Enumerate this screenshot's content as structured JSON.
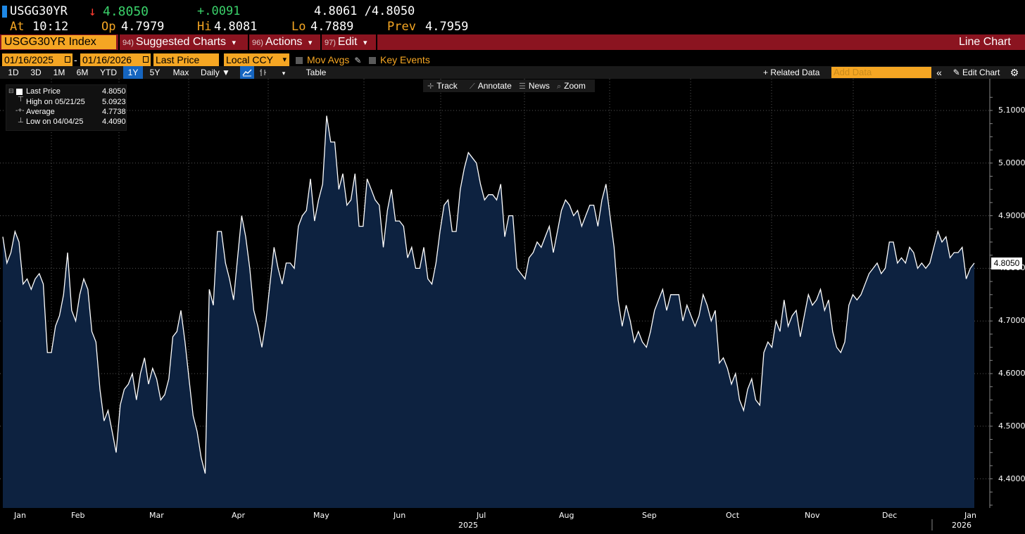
{
  "header": {
    "ticker": "USGG30YR",
    "direction_arrow": "↓",
    "last": "4.8050",
    "change": "+.0091",
    "bid_ask": "4.8061 /4.8050",
    "time_label": "At",
    "time": "10:12",
    "open_label": "Op",
    "open": "4.7979",
    "high_label": "Hi",
    "high": "4.8081",
    "low_label": "Lo",
    "low": "4.7889",
    "prev_label": "Prev",
    "prev": "4.7959"
  },
  "redbar": {
    "security": "USGG30YR Index",
    "suggested_num": "94)",
    "suggested": "Suggested Charts",
    "actions_num": "96)",
    "actions": "Actions",
    "edit_num": "97)",
    "edit": "Edit",
    "caret": "▾",
    "chart_type": "Line Chart"
  },
  "controls": {
    "start_date": "01/16/2025",
    "dash": "-",
    "end_date": "01/16/2026",
    "field": "Last Price",
    "currency": "Local CCY",
    "mov_avgs": "Mov Avgs",
    "key_events": "Key Events"
  },
  "ranges": [
    "1D",
    "3D",
    "1M",
    "6M",
    "YTD",
    "1Y",
    "5Y",
    "Max"
  ],
  "selected_range": "1Y",
  "period": "Daily ▼",
  "table_label": "Table",
  "related_data": "+ Related Data",
  "add_data_placeholder": "Add Data",
  "edit_chart": "Edit Chart",
  "chart_tools": [
    "Track",
    "Annotate",
    "News",
    "Zoom"
  ],
  "legend": {
    "last_label": "Last Price",
    "last_value": "4.8050",
    "high_label": "High on 05/21/25",
    "high_value": "5.0923",
    "avg_label": "Average",
    "avg_value": "4.7738",
    "low_label": "Low on 04/04/25",
    "low_value": "4.4090"
  },
  "chart_data": {
    "type": "area",
    "ylim": [
      4.35,
      5.15
    ],
    "grid": true,
    "yticks": [
      "5.1000",
      "5.0000",
      "4.9000",
      "4.8000",
      "4.7000",
      "4.6000",
      "4.5000",
      "4.4000"
    ],
    "last_value_tag": "4.8050",
    "line_color": "#ffffff",
    "fill_color": "#0d2240",
    "months": [
      "Jan",
      "Feb",
      "Mar",
      "Apr",
      "May",
      "Jun",
      "Jul",
      "Aug",
      "Sep",
      "Oct",
      "Nov",
      "Dec",
      "Jan"
    ],
    "year_labels": [
      "2025",
      "2026"
    ],
    "x_start": "2025-01-16",
    "x_end": "2026-01-16",
    "values": [
      4.86,
      4.81,
      4.83,
      4.87,
      4.85,
      4.77,
      4.78,
      4.76,
      4.78,
      4.79,
      4.77,
      4.64,
      4.64,
      4.69,
      4.71,
      4.75,
      4.83,
      4.72,
      4.7,
      4.75,
      4.78,
      4.76,
      4.68,
      4.66,
      4.57,
      4.51,
      4.53,
      4.49,
      4.45,
      4.54,
      4.57,
      4.58,
      4.6,
      4.55,
      4.6,
      4.63,
      4.58,
      4.61,
      4.59,
      4.55,
      4.56,
      4.59,
      4.67,
      4.68,
      4.72,
      4.66,
      4.59,
      4.52,
      4.49,
      4.44,
      4.41,
      4.76,
      4.73,
      4.87,
      4.87,
      4.81,
      4.78,
      4.74,
      4.82,
      4.9,
      4.86,
      4.8,
      4.72,
      4.69,
      4.65,
      4.7,
      4.77,
      4.84,
      4.8,
      4.77,
      4.81,
      4.81,
      4.8,
      4.88,
      4.9,
      4.91,
      4.97,
      4.89,
      4.93,
      4.96,
      5.09,
      5.04,
      5.04,
      4.95,
      4.98,
      4.92,
      4.93,
      4.98,
      4.88,
      4.88,
      4.97,
      4.95,
      4.93,
      4.92,
      4.84,
      4.91,
      4.95,
      4.89,
      4.89,
      4.88,
      4.82,
      4.84,
      4.8,
      4.8,
      4.84,
      4.78,
      4.77,
      4.81,
      4.87,
      4.92,
      4.93,
      4.87,
      4.87,
      4.95,
      4.99,
      5.02,
      5.01,
      5.0,
      4.96,
      4.93,
      4.94,
      4.94,
      4.93,
      4.96,
      4.86,
      4.9,
      4.9,
      4.8,
      4.79,
      4.78,
      4.82,
      4.83,
      4.85,
      4.84,
      4.86,
      4.88,
      4.83,
      4.87,
      4.91,
      4.93,
      4.92,
      4.9,
      4.91,
      4.88,
      4.9,
      4.92,
      4.92,
      4.88,
      4.93,
      4.96,
      4.9,
      4.84,
      4.74,
      4.69,
      4.73,
      4.7,
      4.66,
      4.68,
      4.66,
      4.65,
      4.68,
      4.72,
      4.74,
      4.76,
      4.72,
      4.75,
      4.75,
      4.75,
      4.7,
      4.73,
      4.71,
      4.69,
      4.71,
      4.75,
      4.73,
      4.7,
      4.72,
      4.62,
      4.63,
      4.61,
      4.58,
      4.6,
      4.55,
      4.53,
      4.57,
      4.59,
      4.55,
      4.54,
      4.64,
      4.66,
      4.65,
      4.7,
      4.68,
      4.74,
      4.69,
      4.71,
      4.72,
      4.67,
      4.71,
      4.75,
      4.73,
      4.74,
      4.76,
      4.72,
      4.74,
      4.68,
      4.65,
      4.64,
      4.66,
      4.73,
      4.75,
      4.74,
      4.75,
      4.77,
      4.79,
      4.8,
      4.81,
      4.79,
      4.8,
      4.85,
      4.85,
      4.81,
      4.82,
      4.81,
      4.84,
      4.83,
      4.8,
      4.81,
      4.8,
      4.81,
      4.84,
      4.87,
      4.85,
      4.86,
      4.82,
      4.83,
      4.83,
      4.84,
      4.78,
      4.8,
      4.81
    ]
  }
}
